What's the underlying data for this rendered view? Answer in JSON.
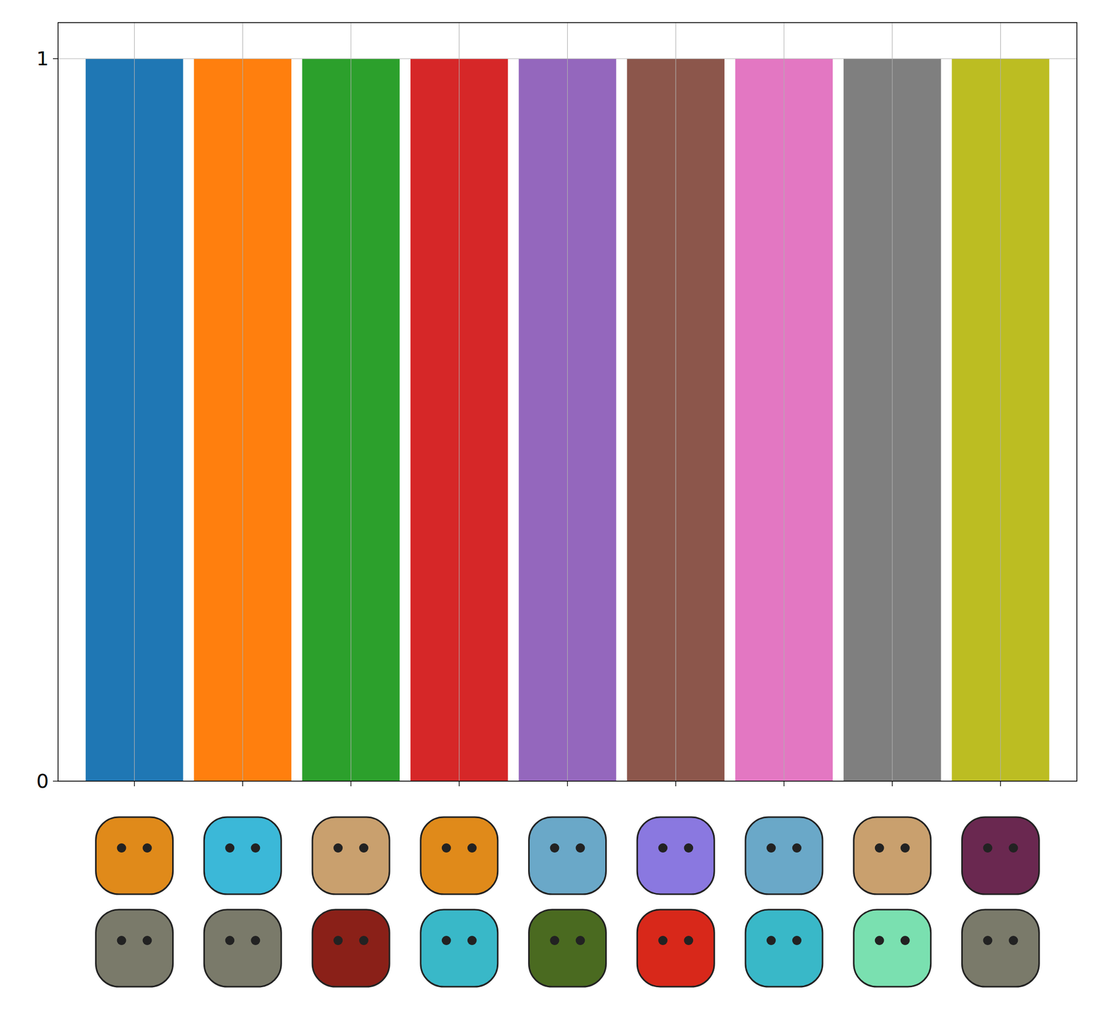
{
  "chart_data": {
    "type": "bar",
    "categories": [
      null,
      null,
      null,
      null,
      null,
      null,
      null,
      null,
      null
    ],
    "values": [
      1,
      1,
      1,
      1,
      1,
      1,
      1,
      1,
      1
    ],
    "colors": [
      "#1f77b4",
      "#ff7f0e",
      "#2ca02c",
      "#d62728",
      "#9467bd",
      "#8c564b",
      "#e377c2",
      "#7f7f7f",
      "#bcbd22"
    ],
    "ylim": [
      0,
      1.05
    ],
    "yticks": [
      0,
      1
    ],
    "grid": true
  }
}
